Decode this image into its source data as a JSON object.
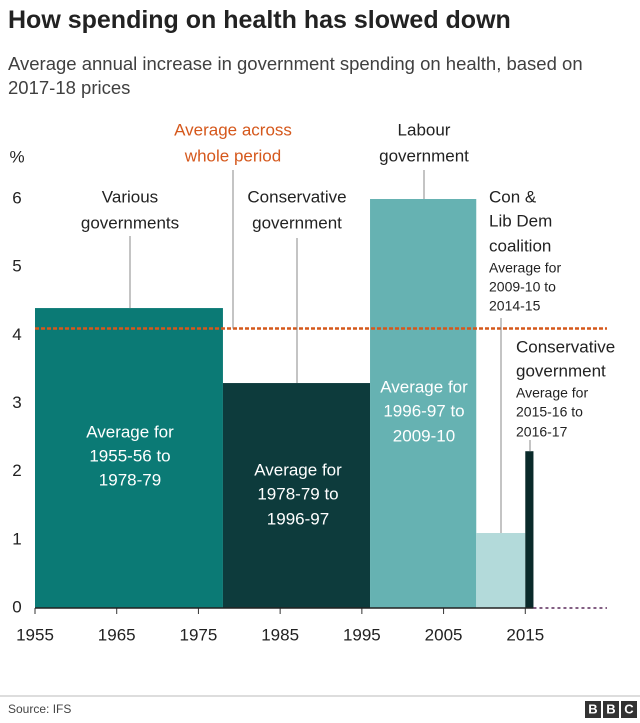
{
  "chart_data": {
    "type": "bar",
    "title": "How spending on health has slowed down",
    "subtitle": "Average annual increase in government spending on health, based on 2017-18 prices",
    "y_unit": "%",
    "xlim": [
      1955,
      2025
    ],
    "xticks": [
      1955,
      1965,
      1975,
      1985,
      1995,
      2005,
      2015
    ],
    "ylim": [
      0,
      6
    ],
    "yticks": [
      0,
      1,
      2,
      3,
      4,
      5,
      6
    ],
    "bars": [
      {
        "x_start": 1955,
        "x_end": 1978,
        "value": 4.4,
        "color": "#0b7a75",
        "label": [
          "Various",
          "governments"
        ],
        "inner": [
          "Average for",
          "1955-56 to",
          "1978-79"
        ]
      },
      {
        "x_start": 1978,
        "x_end": 1996,
        "value": 3.3,
        "color": "#0d3b3c",
        "label": [
          "Conservative",
          "government"
        ],
        "inner": [
          "Average for",
          "1978-79 to",
          "1996-97"
        ]
      },
      {
        "x_start": 1996,
        "x_end": 2009,
        "value": 6.0,
        "color": "#66b2b2",
        "label": [
          "Labour",
          "government"
        ],
        "inner": [
          "Average for",
          "1996-97 to",
          "2009-10"
        ]
      },
      {
        "x_start": 2009,
        "x_end": 2015,
        "value": 1.1,
        "color": "#b3dada",
        "label": [
          "Con &",
          "Lib Dem",
          "coalition"
        ],
        "note": [
          "Average for",
          "2009-10 to",
          "2014-15"
        ]
      },
      {
        "x_start": 2015,
        "x_end": 2016,
        "value": 2.3,
        "color": "#0a2a2a",
        "label": [
          "Conservative",
          "government"
        ],
        "note": [
          "Average for",
          "2015-16 to",
          "2016-17"
        ]
      }
    ],
    "average": {
      "value": 4.1,
      "color": "#d5581c",
      "label": [
        "Average across",
        "whole period"
      ]
    },
    "source": "Source: IFS",
    "logo": [
      "B",
      "B",
      "C"
    ]
  }
}
